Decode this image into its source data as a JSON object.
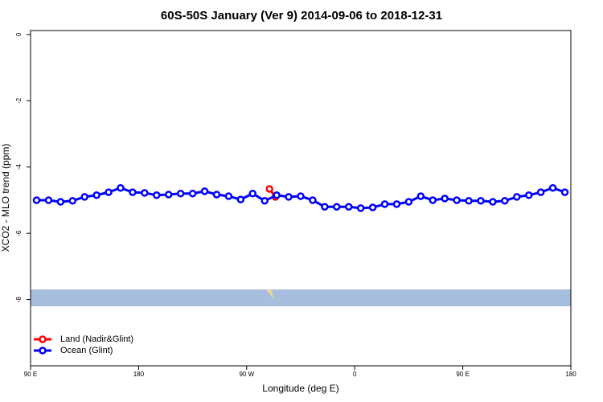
{
  "chart_data": {
    "type": "line",
    "title": "60S-50S January (Ver 9)   2014-09-06 to 2018-12-31",
    "x_label": "Longitude (deg E)",
    "y_label": "XCO2 - MLO trend (ppm)",
    "xlim": [
      90,
      540
    ],
    "xticks": [
      {
        "value": 90,
        "label": "90 E"
      },
      180,
      {
        "value": 270,
        "label": "90 W"
      },
      {
        "value": 360,
        "label": "0"
      },
      {
        "value": 450,
        "label": "90 E"
      },
      {
        "value": 540,
        "label": "180"
      }
    ],
    "ylim": [
      -10,
      0.12
    ],
    "yticks": [
      0,
      -2,
      -4,
      -6,
      -8
    ],
    "legend": "bottom-left",
    "series": [
      {
        "name": "Land (Nadir&Glint)",
        "color": "#ff0000",
        "x": [
          289,
          294
        ],
        "values": [
          -4.66,
          -4.9
        ]
      },
      {
        "name": "Ocean (Glint)",
        "color": "#0000ff",
        "x": [
          95,
          105,
          115,
          125,
          135,
          145,
          155,
          165,
          175,
          185,
          195,
          205,
          215,
          225,
          235,
          245,
          255,
          265,
          275,
          285,
          295,
          305,
          315,
          325,
          335,
          345,
          355,
          365,
          375,
          385,
          395,
          405,
          415,
          425,
          435,
          445,
          455,
          465,
          475,
          485,
          495,
          505,
          515,
          525,
          535
        ],
        "values": [
          -5.0,
          -5.0,
          -5.05,
          -5.02,
          -4.9,
          -4.85,
          -4.76,
          -4.63,
          -4.76,
          -4.78,
          -4.85,
          -4.83,
          -4.8,
          -4.8,
          -4.73,
          -4.83,
          -4.88,
          -4.98,
          -4.8,
          -5.02,
          -4.85,
          -4.9,
          -4.88,
          -5.0,
          -5.2,
          -5.2,
          -5.2,
          -5.24,
          -5.22,
          -5.12,
          -5.12,
          -5.05,
          -4.88,
          -5.0,
          -4.95,
          -5.0,
          -5.02,
          -5.02,
          -5.05,
          -5.02,
          -4.9,
          -4.85,
          -4.76,
          -4.63,
          -4.76
        ]
      }
    ]
  }
}
